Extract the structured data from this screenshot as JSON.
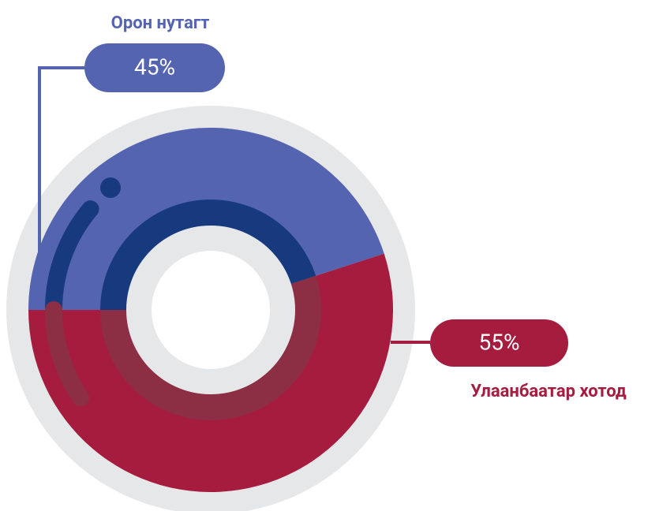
{
  "chart_data": {
    "type": "pie",
    "categories": [
      "Орон нутагт",
      "Улаанбаатар хотод"
    ],
    "values": [
      45,
      55
    ],
    "value_labels": [
      "45%",
      "55%"
    ],
    "colors": [
      "#5564b1",
      "#a61c3f"
    ]
  }
}
